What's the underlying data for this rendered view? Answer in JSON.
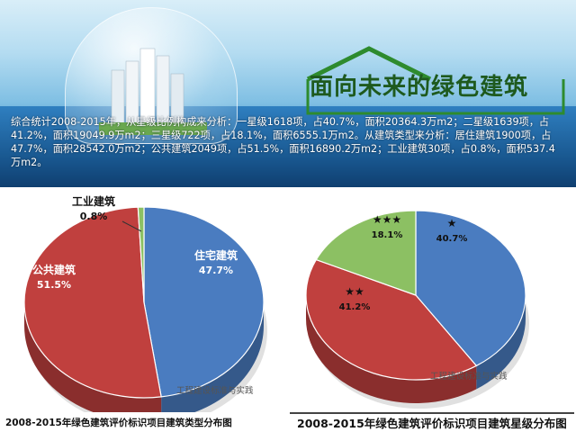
{
  "banner": {
    "title": "面向未来的绿色建筑",
    "description": "综合统计2008-2015年，从星级比例构成来分析：一星级1618项，占40.7%，面积20364.3万m2；二星级1639项，占41.2%，面积19049.9万m2；三星级722项，占18.1%，面积6555.1万m2。从建筑类型来分析：居住建筑1900项，占47.7%，面积28542.0万m2；公共建筑2049项，占51.5%，面积16890.2万m2；工业建筑30项，占0.8%，面积537.4万m2。"
  },
  "watermark": "工程建设标准与实践",
  "chart_data": [
    {
      "type": "pie",
      "title": "2008-2015年绿色建筑评价标识项目建筑类型分布图",
      "slices": [
        {
          "label": "住宅建筑",
          "value": 47.7,
          "value_label": "47.7%",
          "color": "#4a7cc0"
        },
        {
          "label": "公共建筑",
          "value": 51.5,
          "value_label": "51.5%",
          "color": "#c0403e"
        },
        {
          "label": "工业建筑",
          "value": 0.8,
          "value_label": "0.8%",
          "color": "#8cc063"
        }
      ]
    },
    {
      "type": "pie",
      "title": "2008-2015年绿色建筑评价标识项目建筑星级分布图",
      "slices": [
        {
          "label": "★",
          "value": 40.7,
          "value_label": "40.7%",
          "color": "#4a7cc0"
        },
        {
          "label": "★★",
          "value": 41.2,
          "value_label": "41.2%",
          "color": "#c0403e"
        },
        {
          "label": "★★★",
          "value": 18.1,
          "value_label": "18.1%",
          "color": "#8cc063"
        }
      ]
    }
  ]
}
